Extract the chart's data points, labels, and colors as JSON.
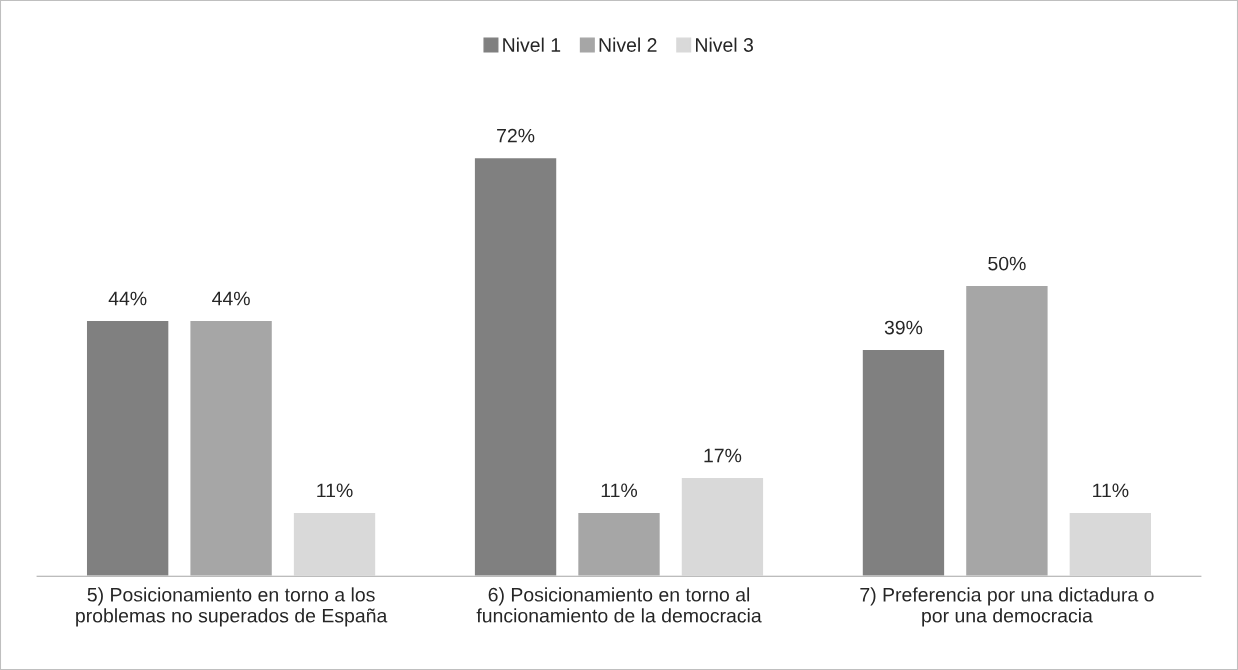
{
  "chart_data": {
    "type": "bar",
    "categories": [
      "5) Posicionamiento en torno a los\nproblemas no superados de España",
      "6) Posicionamiento en torno al\nfuncionamiento de la democracia",
      "7) Preferencia por una dictadura o\npor una democracia"
    ],
    "series": [
      {
        "name": "Nivel 1",
        "color": "#808080",
        "values": [
          44,
          72,
          39
        ],
        "value_labels": [
          "44%",
          "72%",
          "39%"
        ]
      },
      {
        "name": "Nivel 2",
        "color": "#a6a6a6",
        "values": [
          44,
          11,
          50
        ],
        "value_labels": [
          "44%",
          "11%",
          "50%"
        ]
      },
      {
        "name": "Nivel 3",
        "color": "#d9d9d9",
        "values": [
          11,
          17,
          11
        ],
        "value_labels": [
          "11%",
          "17%",
          "11%"
        ]
      }
    ],
    "legend": "top",
    "tick_labels": "x"
  }
}
